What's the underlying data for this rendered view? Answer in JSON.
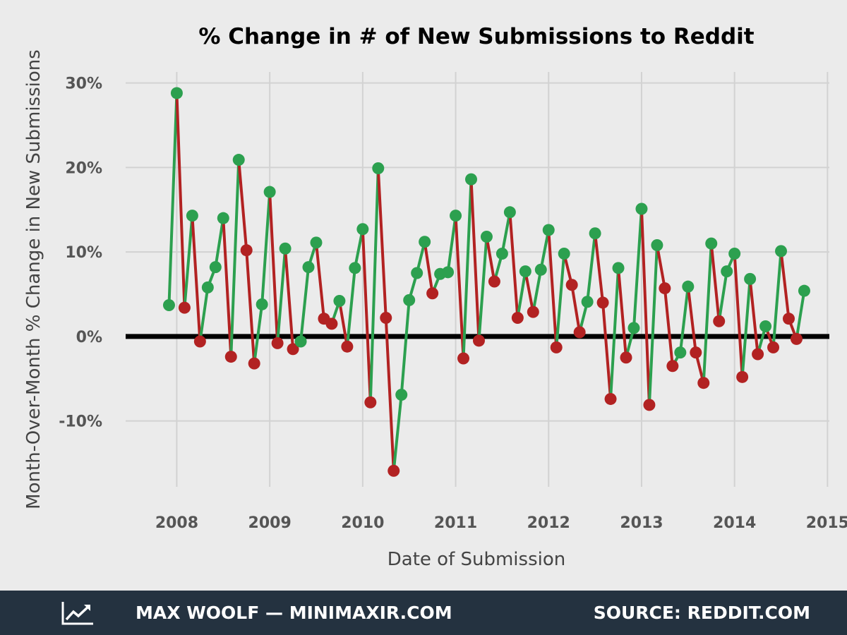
{
  "footer": {
    "author": "MAX WOOLF — MINIMAXIR.COM",
    "source": "SOURCE: REDDIT.COM",
    "logo_icon": "trending-up-chart-icon"
  },
  "colors": {
    "background": "#ebebeb",
    "increase": "#2ca04f",
    "decrease": "#b22222",
    "zero_line": "#000000",
    "footer_bg": "#243240"
  },
  "chart_data": {
    "type": "line",
    "title": "% Change in # of New Submissions to Reddit",
    "xlabel": "Date of Submission",
    "ylabel": "Month-Over-Month % Change in New Submissions",
    "xlim": [
      2007.45,
      2015.02
    ],
    "ylim": [
      -17.8,
      31.3
    ],
    "x_ticks": [
      2008,
      2009,
      2010,
      2011,
      2012,
      2013,
      2014,
      2015
    ],
    "y_ticks": [
      -10,
      0,
      10,
      20,
      30
    ],
    "y_tick_labels": [
      "-10%",
      "0%",
      "10%",
      "20%",
      "30%"
    ],
    "grid": true,
    "coloring": "segment and point green when value rises from previous month, red when it falls",
    "series": [
      {
        "start": "2007-12",
        "frequency": "monthly",
        "values": [
          3.7,
          28.8,
          3.4,
          14.3,
          -0.6,
          5.8,
          8.2,
          14.0,
          -2.4,
          20.9,
          10.2,
          -3.2,
          3.8,
          17.1,
          -0.8,
          10.4,
          -1.5,
          -0.6,
          8.2,
          11.1,
          2.1,
          1.5,
          4.2,
          -1.2,
          8.1,
          12.7,
          -7.8,
          19.9,
          2.2,
          -15.9,
          -6.9,
          4.3,
          7.5,
          11.2,
          5.1,
          7.4,
          7.6,
          14.3,
          -2.6,
          18.6,
          -0.5,
          11.8,
          6.5,
          9.8,
          14.7,
          2.2,
          7.7,
          2.9,
          7.9,
          12.6,
          -1.3,
          9.8,
          6.1,
          0.5,
          4.1,
          12.2,
          4.0,
          -7.4,
          8.1,
          -2.5,
          1.0,
          15.1,
          -8.1,
          10.8,
          5.7,
          -3.5,
          -1.9,
          5.9,
          -1.9,
          -5.5,
          11.0,
          1.8,
          7.7,
          9.8,
          -4.8,
          6.8,
          -2.1,
          1.2,
          -1.3,
          10.1,
          2.1,
          -0.3,
          5.4
        ]
      }
    ]
  }
}
